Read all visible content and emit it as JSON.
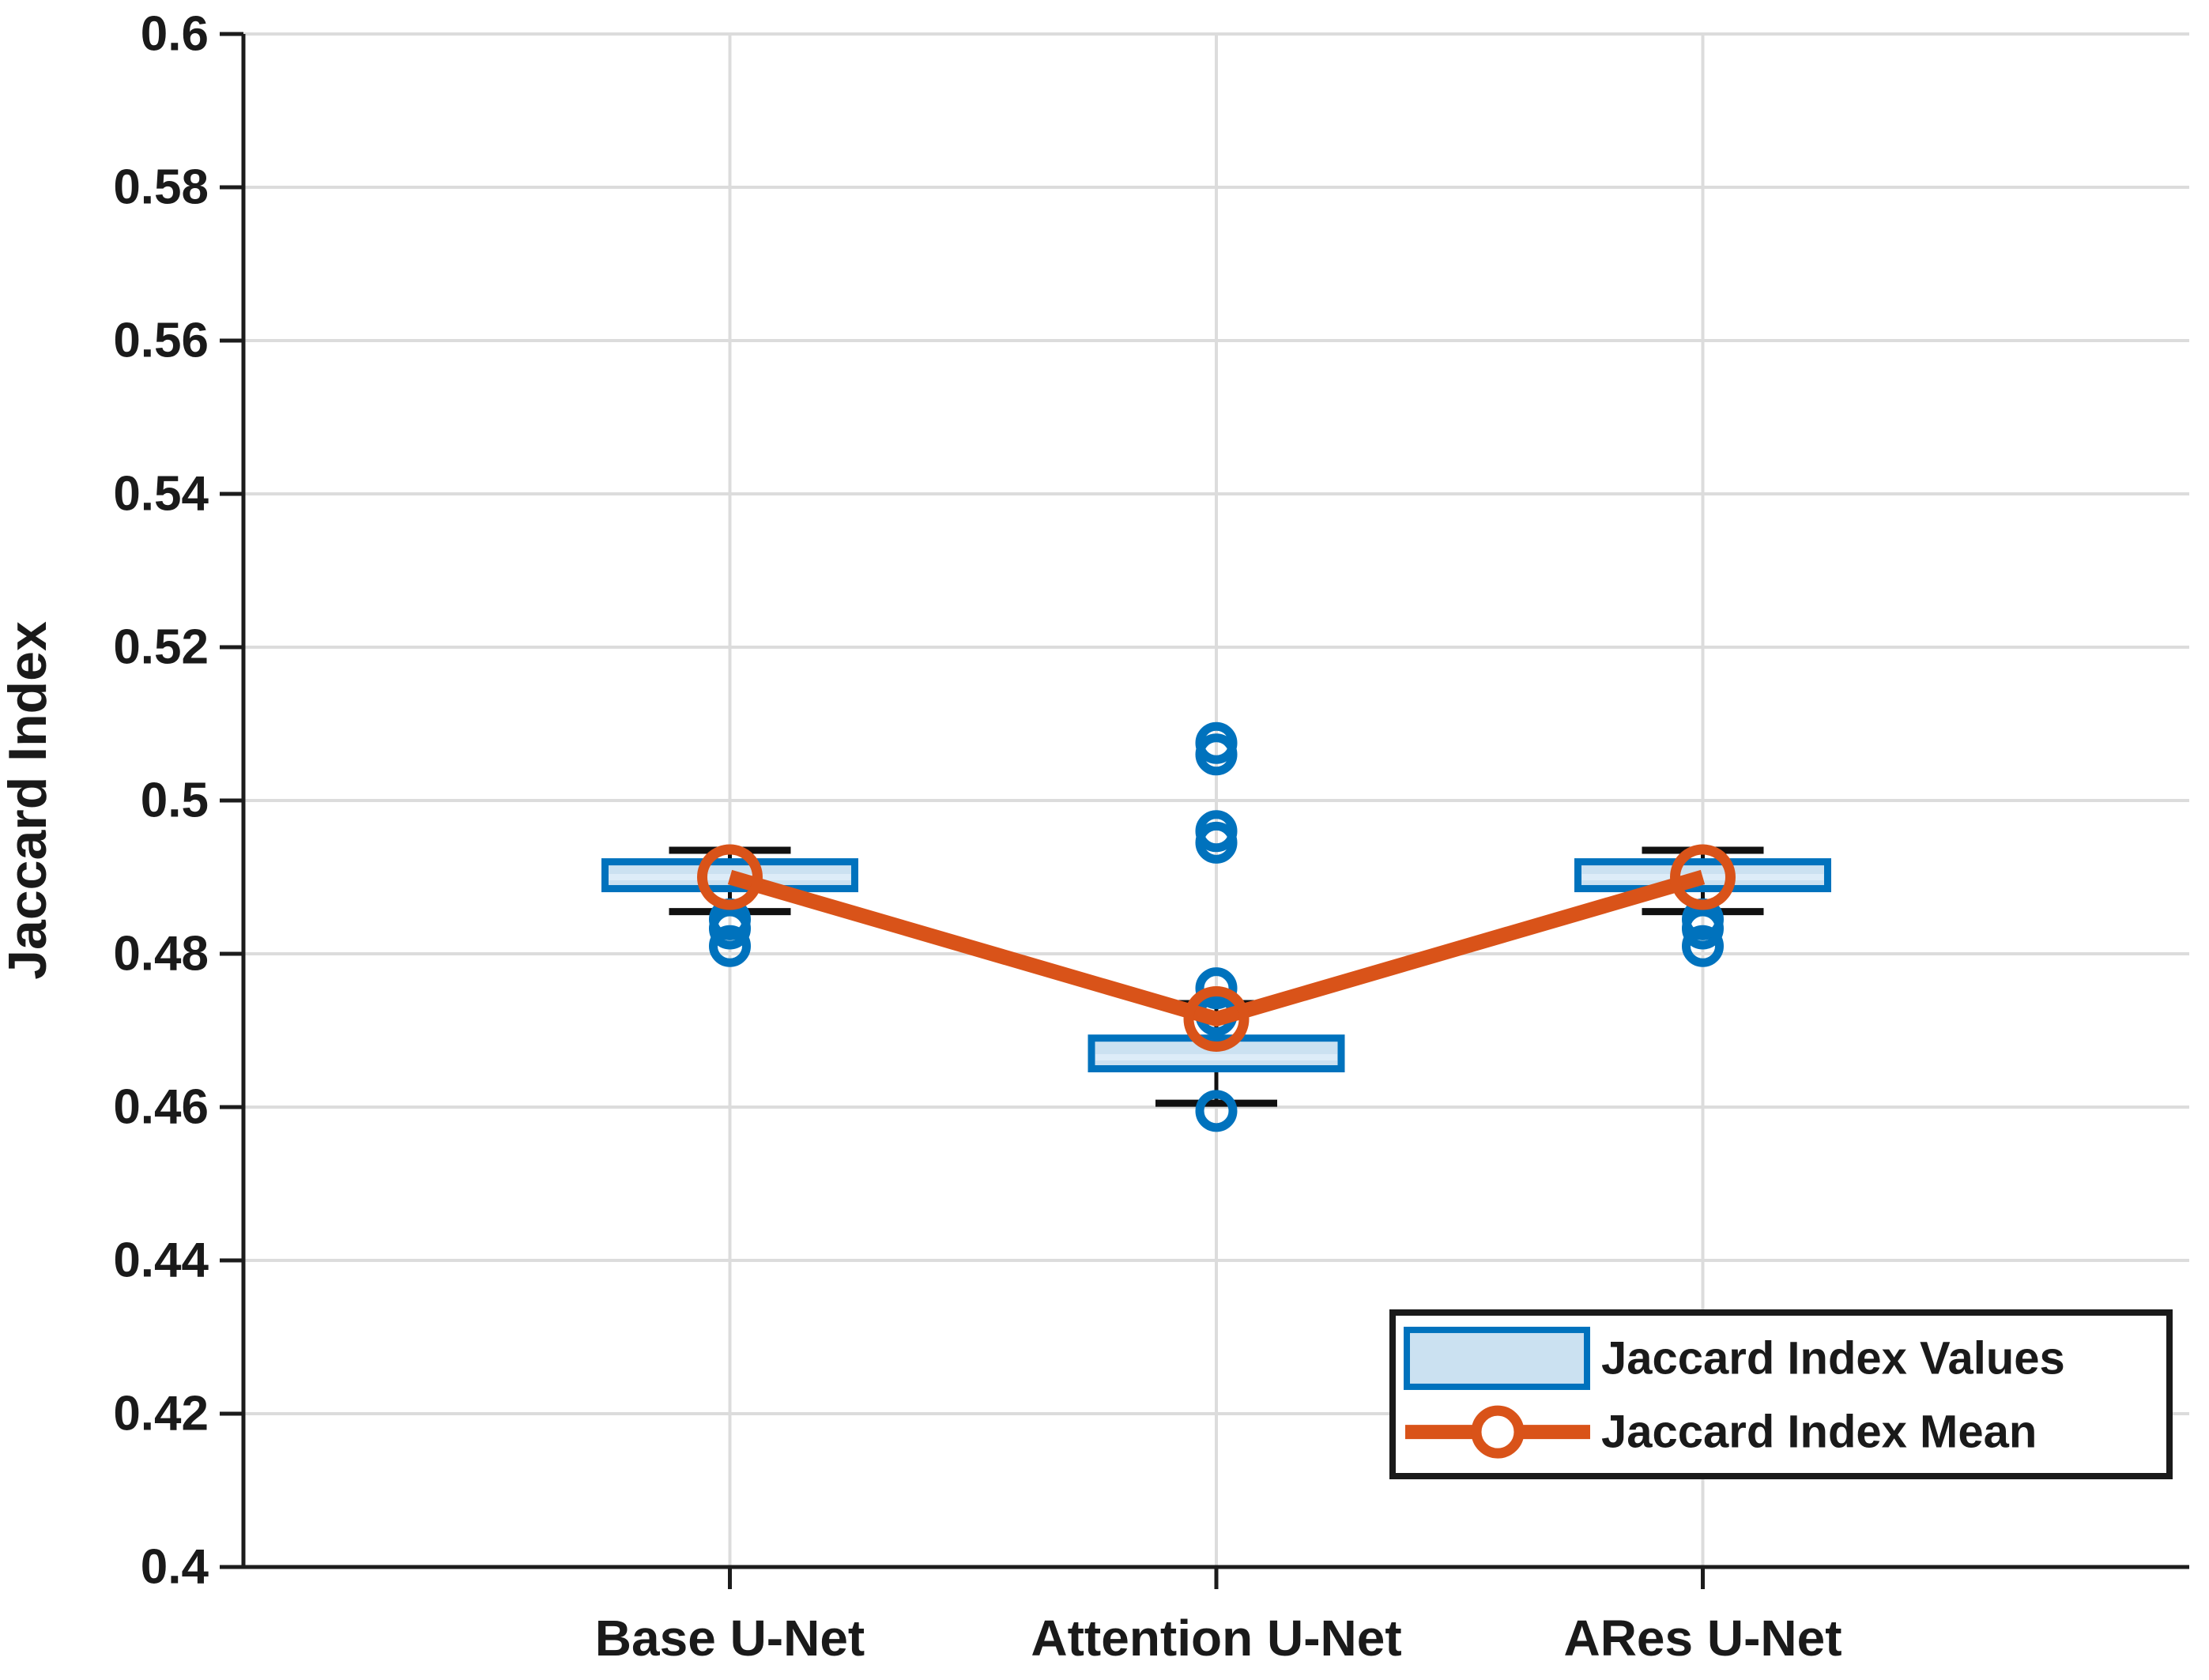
{
  "figure": {
    "background": "#ffffff"
  },
  "chart_data": {
    "type": "box",
    "title": "",
    "xlabel": "",
    "ylabel": "Jaccard Index",
    "ylim": [
      0.4,
      0.6
    ],
    "ytick_interval": 0.02,
    "ytick_labels": [
      "0.4",
      "0.42",
      "0.44",
      "0.46",
      "0.48",
      "0.5",
      "0.52",
      "0.54",
      "0.56",
      "0.58",
      "0.6"
    ],
    "grid": true,
    "categories": [
      "Base U-Net",
      "Attention U-Net",
      "ARes U-Net"
    ],
    "series": [
      {
        "name": "Base U-Net",
        "q1": 0.4885,
        "median": 0.49,
        "q3": 0.492,
        "whisker_low": 0.4855,
        "whisker_high": 0.4935,
        "outliers": [
          0.4845,
          0.4833,
          0.481
        ],
        "mean": 0.49
      },
      {
        "name": "Attention U-Net",
        "q1": 0.465,
        "median": 0.4665,
        "q3": 0.469,
        "whisker_low": 0.4605,
        "whisker_high": 0.4735,
        "outliers": [
          0.5075,
          0.506,
          0.496,
          0.4945,
          0.4755,
          0.472,
          0.4595
        ],
        "mean": 0.4715
      },
      {
        "name": "ARes U-Net",
        "q1": 0.4885,
        "median": 0.49,
        "q3": 0.492,
        "whisker_low": 0.4855,
        "whisker_high": 0.4935,
        "outliers": [
          0.4845,
          0.4833,
          0.481
        ],
        "mean": 0.49
      }
    ],
    "legend": {
      "position": "south-east",
      "entries": [
        {
          "label": "Jaccard Index Values",
          "type": "box-swatch"
        },
        {
          "label": "Jaccard Index Mean",
          "type": "line-circle-marker"
        }
      ]
    },
    "colors": {
      "box_line": "#0072BD",
      "box_fill": "#cbe1f1",
      "median_line": "#ddecf8",
      "whisker": "#111111",
      "mean_line": "#D95319",
      "grid": "#dcdcdc",
      "axis": "#1c1c1c",
      "text": "#1a1a1a",
      "legend_border": "#1a1a1a",
      "legend_bg": "#ffffff"
    }
  }
}
